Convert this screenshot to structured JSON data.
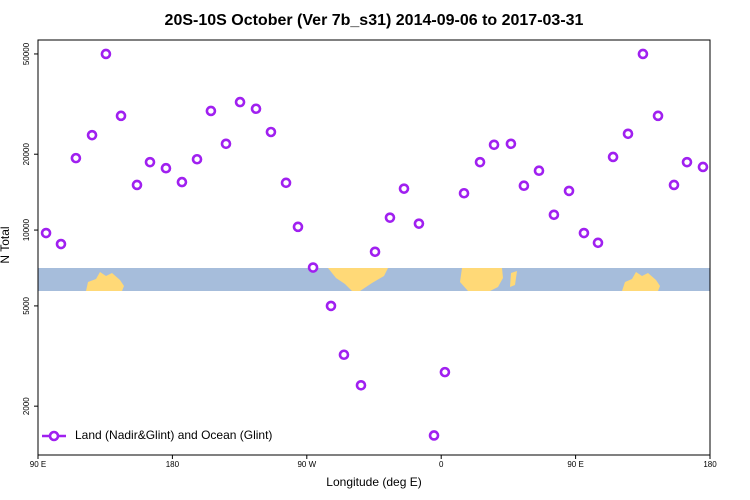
{
  "chart_data": {
    "type": "scatter",
    "title": "20S-10S October (Ver 7b_s31)   2014-09-06 to 2017-03-31",
    "x_label": "Longitude (deg E)",
    "y_label": "N Total",
    "xlim": [
      90,
      540
    ],
    "xticks": [
      {
        "value": 90,
        "label": "90 E"
      },
      180,
      {
        "value": 270,
        "label": "90 W"
      },
      {
        "value": 360,
        "label": "0"
      },
      {
        "value": 450,
        "label": "90 E"
      },
      {
        "value": 540,
        "label": "180"
      }
    ],
    "ylim": [
      1280,
      56800
    ],
    "yscale": "log",
    "yticks": [
      2000,
      5000,
      10000,
      20000,
      50000
    ],
    "legend": "bottom-left",
    "series": [
      {
        "name": "Land (Nadir&Glint) and Ocean (Glint)",
        "color": "#a020f0",
        "x": [
          95.4,
          105.4,
          115.4,
          126.2,
          135.5,
          145.6,
          156.3,
          165,
          175.7,
          186.4,
          196.5,
          205.8,
          215.9,
          225.3,
          236,
          246,
          256.1,
          264.1,
          274.2,
          286.2,
          294.9,
          306.3,
          315.7,
          325.7,
          335.1,
          345.1,
          355.2,
          362.5,
          375.3,
          386,
          395.4,
          406.7,
          415.4,
          425.5,
          435.5,
          445.6,
          455.6,
          465,
          475.1,
          485.1,
          495.1,
          505.2,
          515.9,
          524.6,
          535.3
        ],
        "values": [
          9730,
          8800,
          19300,
          23800,
          50000,
          28400,
          15100,
          18600,
          17600,
          15500,
          19100,
          29700,
          22000,
          32200,
          30300,
          24500,
          15400,
          10300,
          7100,
          5000,
          3200,
          2420,
          8200,
          11200,
          14600,
          10600,
          1530,
          2730,
          14000,
          18600,
          21800,
          22000,
          15000,
          17200,
          11500,
          14300,
          9730,
          8900,
          19500,
          24100,
          50000,
          28400,
          15100,
          18600,
          17800
        ]
      }
    ]
  }
}
